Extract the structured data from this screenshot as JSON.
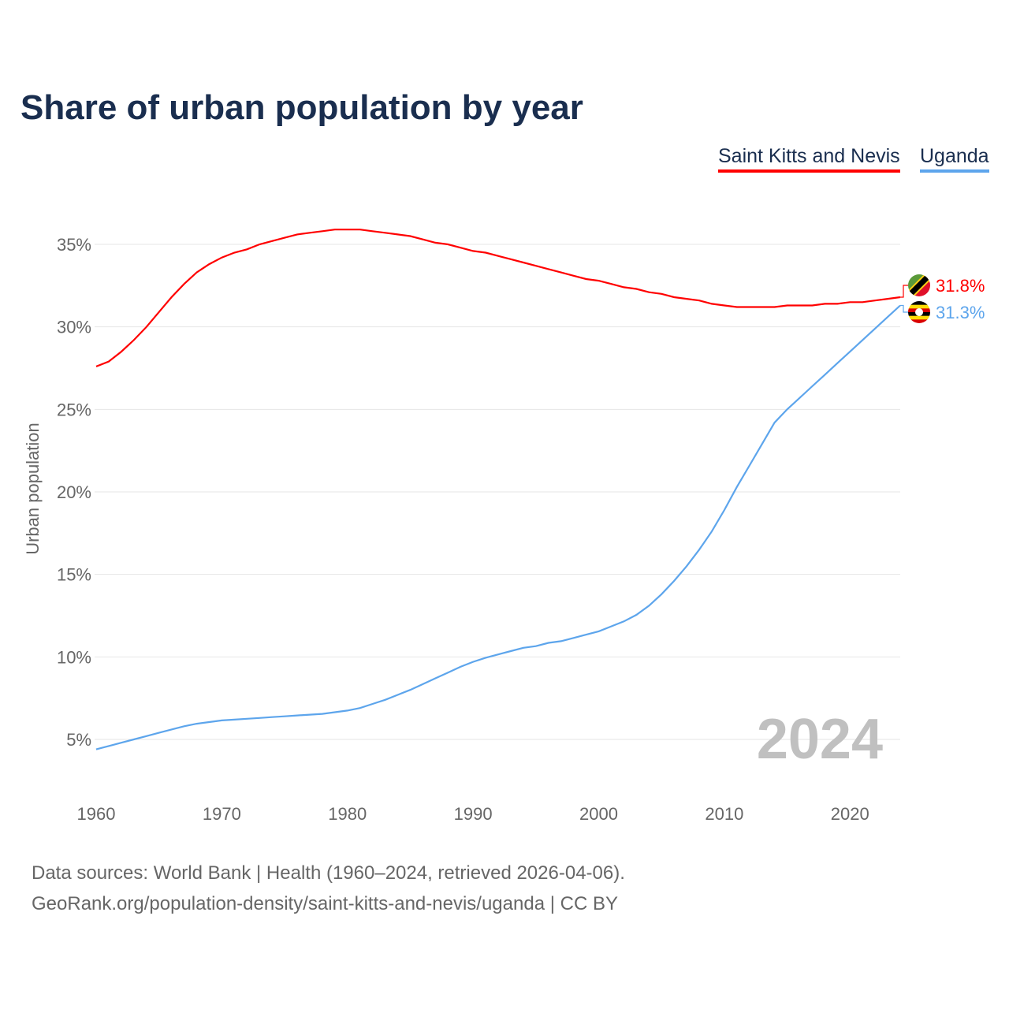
{
  "chart_data": {
    "type": "line",
    "title": "Share of urban population by year",
    "ylabel": "Urban population",
    "xlabel": "",
    "xlim": [
      1960,
      2024
    ],
    "ylim": [
      2,
      38
    ],
    "xticks": [
      "1960",
      "1970",
      "1980",
      "1990",
      "2000",
      "2010",
      "2020"
    ],
    "yticks": [
      "5%",
      "10%",
      "15%",
      "20%",
      "25%",
      "30%",
      "35%"
    ],
    "grid": true,
    "year_label": "2024",
    "series": [
      {
        "name": "Saint Kitts and Nevis",
        "color": "#ff0000",
        "end_label": "31.8%",
        "icon": "flag-saint-kitts-and-nevis-icon",
        "values": [
          27.6,
          27.9,
          28.5,
          29.2,
          30.0,
          30.9,
          31.8,
          32.6,
          33.3,
          33.8,
          34.2,
          34.5,
          34.7,
          35.0,
          35.2,
          35.4,
          35.6,
          35.7,
          35.8,
          35.9,
          35.9,
          35.9,
          35.8,
          35.7,
          35.6,
          35.5,
          35.3,
          35.1,
          35.0,
          34.8,
          34.6,
          34.5,
          34.3,
          34.1,
          33.9,
          33.7,
          33.5,
          33.3,
          33.1,
          32.9,
          32.8,
          32.6,
          32.4,
          32.3,
          32.1,
          32.0,
          31.8,
          31.7,
          31.6,
          31.4,
          31.3,
          31.2,
          31.2,
          31.2,
          31.2,
          31.3,
          31.3,
          31.3,
          31.4,
          31.4,
          31.5,
          31.5,
          31.6,
          31.7,
          31.8
        ]
      },
      {
        "name": "Uganda",
        "color": "#5da5ec",
        "end_label": "31.3%",
        "icon": "flag-uganda-icon",
        "values": [
          4.4,
          4.6,
          4.8,
          5.0,
          5.2,
          5.4,
          5.6,
          5.8,
          5.95,
          6.05,
          6.15,
          6.2,
          6.25,
          6.3,
          6.35,
          6.4,
          6.45,
          6.5,
          6.55,
          6.65,
          6.75,
          6.9,
          7.15,
          7.4,
          7.7,
          8.0,
          8.35,
          8.7,
          9.05,
          9.4,
          9.7,
          9.95,
          10.15,
          10.35,
          10.55,
          10.65,
          10.85,
          10.95,
          11.15,
          11.35,
          11.55,
          11.85,
          12.15,
          12.55,
          13.1,
          13.8,
          14.6,
          15.5,
          16.5,
          17.6,
          18.9,
          20.3,
          21.6,
          22.9,
          24.2,
          25.0,
          25.7,
          26.4,
          27.1,
          27.8,
          28.5,
          29.2,
          29.9,
          30.6,
          31.3
        ]
      }
    ]
  },
  "footer": {
    "line1": "Data sources: World Bank | Health (1960–2024, retrieved 2026-04-06).",
    "line2": "GeoRank.org/population-density/saint-kitts-and-nevis/uganda | CC BY"
  }
}
